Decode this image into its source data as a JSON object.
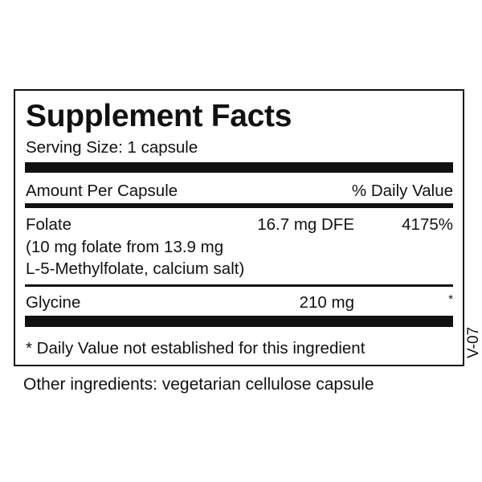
{
  "title": "Supplement Facts",
  "serving_size": "Serving Size: 1 capsule",
  "header": {
    "amount": "Amount Per Capsule",
    "dv": "% Daily Value"
  },
  "rows": [
    {
      "name": "Folate",
      "amount": "16.7 mg DFE",
      "dv": "4175%",
      "detail_1": "(10 mg folate from 13.9 mg",
      "detail_2": "L-5-Methylfolate, calcium salt)"
    },
    {
      "name": "Glycine",
      "amount": "210 mg",
      "dv": "*"
    }
  ],
  "footnote": "* Daily Value not established for this ingredient",
  "version_code": "V-07",
  "other_ingredients": "Other ingredients: vegetarian cellulose capsule"
}
